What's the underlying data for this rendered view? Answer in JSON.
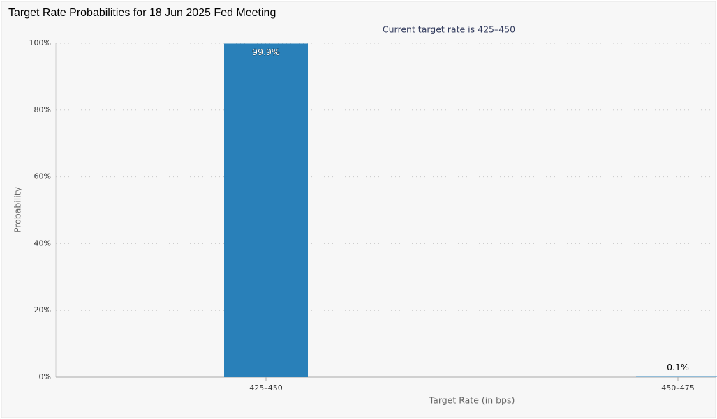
{
  "chart_data": {
    "type": "bar",
    "title": "Target Rate Probabilities for 18 Jun 2025 Fed Meeting",
    "subtitle": "Current target rate is 425–450",
    "categories": [
      "425–450",
      "450–475"
    ],
    "values": [
      99.9,
      0.1
    ],
    "value_labels": [
      "99.9%",
      "0.1%"
    ],
    "color": "#2980b9",
    "ylim": [
      0,
      100
    ],
    "yticks": [
      {
        "value": 0,
        "label": "0%"
      },
      {
        "value": 20,
        "label": "20%"
      },
      {
        "value": 40,
        "label": "40%"
      },
      {
        "value": 60,
        "label": "60%"
      },
      {
        "value": 80,
        "label": "80%"
      },
      {
        "value": 100,
        "label": "100%"
      }
    ],
    "y_label": "Probability",
    "x_label": "Target Rate (in bps)",
    "grid": true
  }
}
